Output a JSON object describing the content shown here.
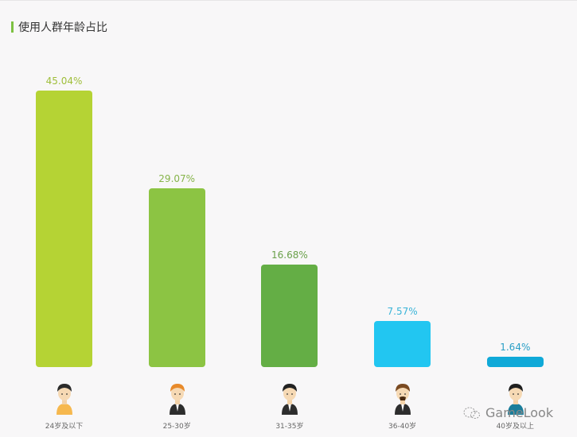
{
  "title": "使用人群年龄占比",
  "watermark": "GameLook",
  "chart_data": {
    "type": "bar",
    "title": "使用人群年龄占比",
    "categories": [
      "24岁及以下",
      "25-30岁",
      "31-35岁",
      "36-40岁",
      "40岁及以上"
    ],
    "values": [
      45.04,
      29.07,
      16.68,
      7.57,
      1.64
    ],
    "labels": [
      "45.04%",
      "29.07%",
      "16.68%",
      "7.57%",
      "1.64%"
    ],
    "colors": [
      "#b5d334",
      "#8cc443",
      "#64ae45",
      "#22c6f1",
      "#10a9d8"
    ],
    "label_colors": [
      "#9fbe3a",
      "#86b44a",
      "#6aa04a",
      "#3ab4d8",
      "#2a9fc6"
    ],
    "xlabel": "",
    "ylabel": "",
    "ylim": [
      0,
      50
    ],
    "grid": false,
    "legend": "none"
  }
}
